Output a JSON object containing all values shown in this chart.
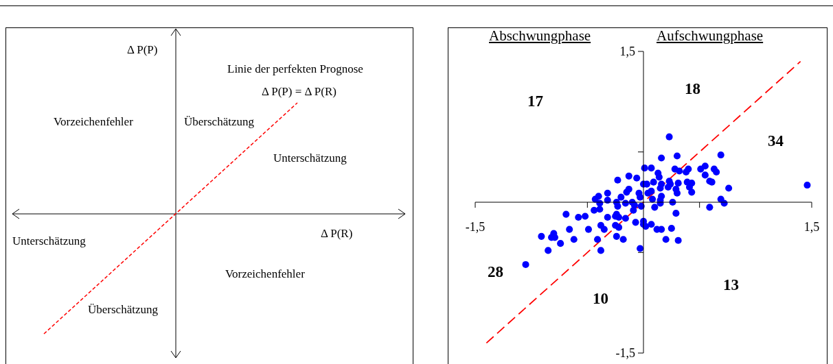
{
  "chart_data": [
    {
      "type": "other",
      "xlabel": "Δ P(R)",
      "ylabel": "Δ P(P)",
      "annotations": [
        "Linie der perfekten Prognose",
        "Δ P(P) = Δ P(R)",
        "Vorzeichenfehler",
        "Überschätzung",
        "Unterschätzung",
        "Unterschätzung",
        "Vorzeichenfehler",
        "Überschätzung"
      ]
    },
    {
      "type": "scatter",
      "xlim": [
        -1.5,
        1.5
      ],
      "ylim": [
        -1.5,
        1.5
      ],
      "xticks": [
        {
          "value": -1.5,
          "label": "-1,5"
        },
        {
          "value": -0.5,
          "label": null
        },
        {
          "value": 0.5,
          "label": null
        },
        {
          "value": 1.5,
          "label": "1,5"
        }
      ],
      "yticks": [
        {
          "value": -1.5,
          "label": "-1,5"
        },
        {
          "value": -0.5,
          "label": null
        },
        {
          "value": 0.5,
          "label": null
        },
        {
          "value": 1.5,
          "label": "1,5"
        }
      ],
      "marker": "circle",
      "annotations": [
        "Abschwungphase",
        "Aufschwungphase",
        "17",
        "18",
        "34",
        "28",
        "10",
        "13"
      ],
      "series": [
        {
          "type": "scatter",
          "color": "#0000ff",
          "x": [
            0.23,
            0.16,
            0.3,
            0.69,
            0.01,
            0.07,
            0.13,
            0.14,
            -0.13,
            -0.06,
            -0.23,
            0.28,
            0.32,
            0.38,
            0.4,
            0.51,
            0.55,
            0.55,
            0.63,
            0.65,
            0.59,
            0.61,
            0.76,
            1.46,
            0.69,
            0.72,
            0.59,
            0.0,
            0.03,
            0.09,
            0.16,
            0.23,
            0.24,
            0.31,
            0.22,
            0.29,
            0.3,
            0.39,
            0.43,
            0.43,
            0.41,
            0.07,
            0.04,
            0.15,
            0.16,
            0.15,
            0.15,
            0.08,
            0.26,
            0.1,
            0.29,
            -0.03,
            -0.02,
            -0.04,
            -0.13,
            -0.15,
            -0.2,
            -0.16,
            -0.1,
            -0.08,
            -0.09,
            -0.32,
            -0.32,
            -0.4,
            -0.43,
            -0.39,
            -0.39,
            -0.44,
            -0.24,
            -0.23,
            -0.24,
            -0.25,
            -0.22,
            -0.32,
            -0.16,
            -0.25,
            -0.22,
            -0.38,
            -0.35,
            -0.24,
            -0.18,
            -0.41,
            -0.38,
            -0.07,
            0.0,
            0.0,
            0.02,
            0.07,
            0.12,
            0.16,
            0.25,
            0.2,
            0.31,
            -0.03,
            -0.69,
            -0.58,
            -0.52,
            -0.66,
            -0.49,
            -0.62,
            -0.91,
            -0.8,
            -0.82,
            -0.79,
            -0.74,
            -0.85,
            -1.05
          ],
          "values": [
            0.65,
            0.44,
            0.46,
            0.47,
            0.34,
            0.34,
            0.29,
            0.25,
            0.26,
            0.24,
            0.22,
            0.33,
            0.31,
            0.3,
            0.33,
            0.33,
            0.36,
            0.27,
            0.33,
            0.3,
            0.21,
            0.2,
            0.14,
            0.17,
            0.03,
            -0.01,
            -0.05,
            0.18,
            0.18,
            0.2,
            0.18,
            0.21,
            0.18,
            0.19,
            0.15,
            0.13,
            0.09,
            0.2,
            0.19,
            0.1,
            0.15,
            0.11,
            0.09,
            0.14,
            0.06,
            0.02,
            -0.01,
            0.03,
            0.0,
            -0.05,
            -0.11,
            0.05,
            -0.04,
            0.09,
            0.13,
            0.1,
            0.05,
            -0.01,
            0.0,
            -0.03,
            -0.08,
            0.09,
            0.02,
            0.06,
            0.03,
            -0.01,
            -0.07,
            -0.08,
            0.0,
            -0.04,
            -0.12,
            -0.14,
            -0.15,
            -0.15,
            -0.16,
            -0.23,
            -0.25,
            -0.23,
            -0.27,
            -0.34,
            -0.37,
            -0.37,
            -0.48,
            -0.2,
            -0.19,
            -0.22,
            -0.24,
            -0.22,
            -0.27,
            -0.27,
            -0.26,
            -0.37,
            -0.38,
            -0.46,
            -0.12,
            -0.15,
            -0.14,
            -0.27,
            -0.27,
            -0.37,
            -0.34,
            -0.31,
            -0.35,
            -0.35,
            -0.41,
            -0.48,
            -0.62
          ]
        },
        {
          "type": "line",
          "color": "#ff0000",
          "line_style": "dashed",
          "marker": "none",
          "x": [
            -1.4,
            1.4
          ],
          "values": [
            -1.4,
            1.4
          ]
        }
      ]
    }
  ]
}
